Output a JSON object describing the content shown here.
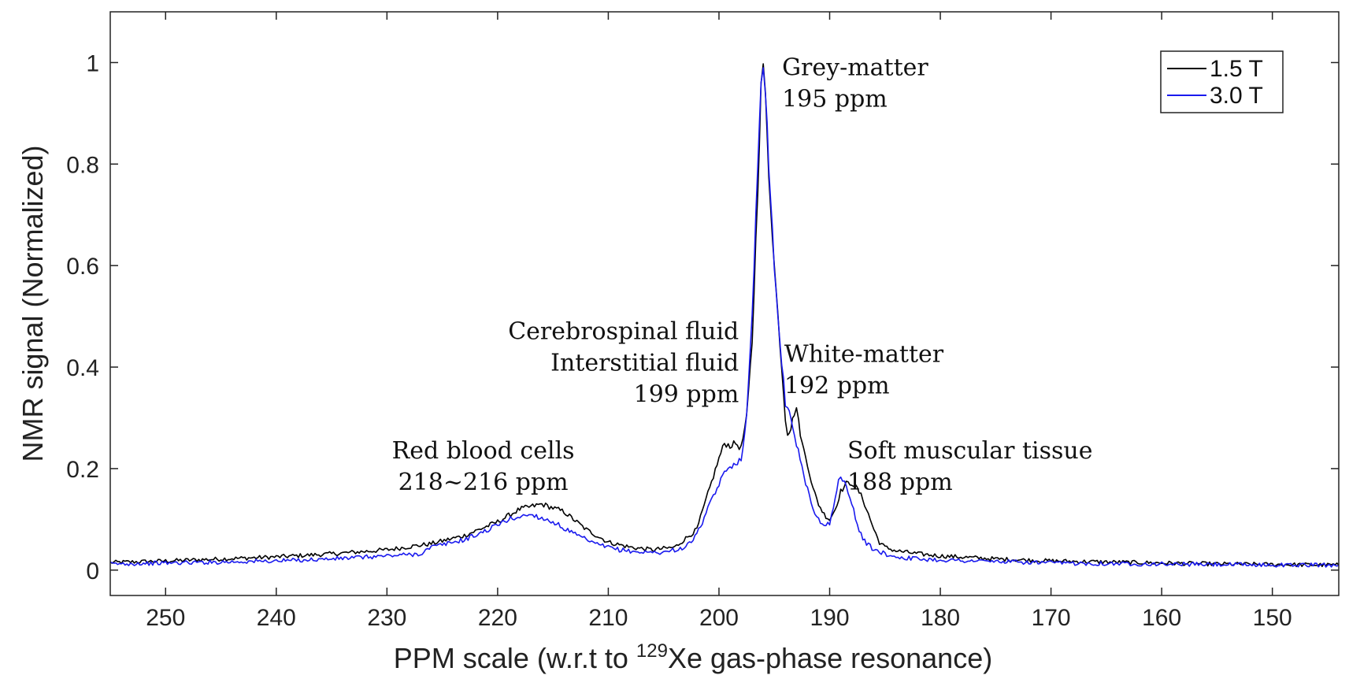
{
  "chart_data": {
    "type": "line",
    "title": "",
    "xlabel_prefix": "PPM scale (w.r.t to ",
    "xlabel_sup": "129",
    "xlabel_suffix": "Xe gas-phase resonance)",
    "ylabel": "NMR signal (Normalized)",
    "xlim": [
      255,
      144
    ],
    "ylim": [
      -0.05,
      1.1
    ],
    "x_reversed": true,
    "x_ticks": [
      250,
      240,
      230,
      220,
      210,
      200,
      190,
      180,
      170,
      160,
      150
    ],
    "y_ticks": [
      0,
      0.2,
      0.4,
      0.6,
      0.8,
      1
    ],
    "y_tick_labels": [
      "0",
      "0.2",
      "0.4",
      "0.6",
      "0.8",
      "1"
    ],
    "grid": false,
    "legend_position": "top-right",
    "series": [
      {
        "name": "1.5 T",
        "color": "#000000",
        "x": [
          255,
          250,
          245,
          240,
          235,
          230,
          226,
          223,
          220,
          218,
          216,
          214,
          212,
          210,
          208,
          206,
          204,
          202,
          201,
          200,
          199.5,
          199,
          198.5,
          198,
          197.5,
          197,
          196.5,
          196.2,
          196,
          195.8,
          195.5,
          195,
          194.5,
          194,
          193.8,
          193.5,
          193.2,
          193,
          192.8,
          192.5,
          192,
          191.5,
          191,
          190.5,
          190,
          189.5,
          189,
          188.5,
          188,
          187.5,
          187,
          186.5,
          186,
          185.5,
          185,
          184,
          182,
          180,
          175,
          170,
          165,
          160,
          155,
          150,
          144
        ],
        "y": [
          0.015,
          0.018,
          0.022,
          0.026,
          0.032,
          0.04,
          0.052,
          0.068,
          0.095,
          0.12,
          0.13,
          0.115,
          0.08,
          0.055,
          0.045,
          0.04,
          0.045,
          0.08,
          0.15,
          0.22,
          0.25,
          0.245,
          0.25,
          0.24,
          0.3,
          0.45,
          0.75,
          0.95,
          1.0,
          0.93,
          0.78,
          0.6,
          0.45,
          0.3,
          0.27,
          0.28,
          0.31,
          0.32,
          0.29,
          0.25,
          0.21,
          0.16,
          0.13,
          0.11,
          0.1,
          0.12,
          0.155,
          0.17,
          0.172,
          0.16,
          0.14,
          0.11,
          0.08,
          0.055,
          0.045,
          0.038,
          0.032,
          0.028,
          0.022,
          0.018,
          0.016,
          0.014,
          0.012,
          0.011,
          0.01
        ]
      },
      {
        "name": "3.0 T",
        "color": "#1a1aee",
        "x": [
          255,
          250,
          245,
          240,
          235,
          230,
          227,
          226,
          225,
          223,
          221,
          219,
          217,
          215,
          213,
          211,
          209,
          207,
          205,
          203,
          202,
          201,
          200,
          199.5,
          199,
          198.5,
          198,
          197.5,
          197,
          196.5,
          196.2,
          196,
          195.8,
          195.5,
          195,
          194.5,
          194,
          193.8,
          193.5,
          193,
          192.5,
          192,
          191.5,
          191,
          190.5,
          190,
          189.5,
          189.2,
          189,
          188.5,
          188,
          187.5,
          187,
          186,
          185,
          184,
          182,
          180,
          175,
          170,
          165,
          160,
          155,
          150,
          144
        ],
        "y": [
          0.012,
          0.014,
          0.016,
          0.018,
          0.022,
          0.028,
          0.032,
          0.045,
          0.05,
          0.06,
          0.078,
          0.1,
          0.11,
          0.095,
          0.07,
          0.05,
          0.04,
          0.035,
          0.035,
          0.045,
          0.07,
          0.12,
          0.17,
          0.19,
          0.205,
          0.21,
          0.22,
          0.3,
          0.5,
          0.8,
          0.97,
          1.0,
          0.95,
          0.8,
          0.6,
          0.45,
          0.33,
          0.32,
          0.3,
          0.25,
          0.2,
          0.16,
          0.12,
          0.1,
          0.09,
          0.09,
          0.14,
          0.175,
          0.18,
          0.17,
          0.13,
          0.09,
          0.06,
          0.04,
          0.032,
          0.026,
          0.022,
          0.02,
          0.017,
          0.014,
          0.013,
          0.012,
          0.011,
          0.01,
          0.01
        ]
      }
    ],
    "annotations": [
      {
        "lines": [
          "Grey-matter",
          "195 ppm"
        ],
        "x": 194.3,
        "y": 0.975,
        "anchor": "start"
      },
      {
        "lines": [
          "Cerebrospinal fluid",
          "Interstitial fluid",
          "199 ppm"
        ],
        "x": 198.2,
        "y": 0.455,
        "anchor": "end"
      },
      {
        "lines": [
          "White-matter",
          "192 ppm"
        ],
        "x": 194.1,
        "y": 0.41,
        "anchor": "start"
      },
      {
        "lines": [
          "Red blood cells",
          "218~216 ppm"
        ],
        "x": 221.3,
        "y": 0.22,
        "anchor": "middle"
      },
      {
        "lines": [
          "Soft muscular tissue",
          "188 ppm"
        ],
        "x": 188.4,
        "y": 0.22,
        "anchor": "start"
      }
    ]
  }
}
